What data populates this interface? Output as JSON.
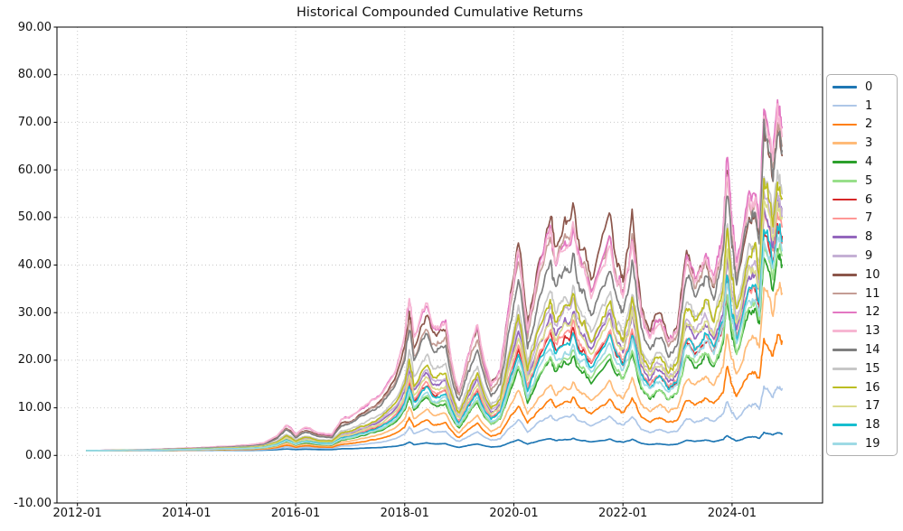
{
  "chart_data": {
    "type": "line",
    "title": "Historical Compounded Cumulative Returns",
    "xlabel": "",
    "ylabel": "",
    "grid": "dotted",
    "legend_position": "outside-right",
    "ylim": [
      -10,
      90
    ],
    "y_tick_labels": [
      "90.00",
      "80.00",
      "70.00",
      "60.00",
      "50.00",
      "40.00",
      "30.00",
      "20.00",
      "10.00",
      "0.00",
      "-10.00"
    ],
    "x_tick_labels": [
      "2012-01",
      "2014-01",
      "2016-01",
      "2018-01",
      "2020-01",
      "2022-01",
      "2024-01"
    ],
    "x_dates": [
      "2012-03",
      "2012-06",
      "2012-09",
      "2012-12",
      "2013-03",
      "2013-06",
      "2013-09",
      "2013-12",
      "2014-03",
      "2014-06",
      "2014-09",
      "2014-12",
      "2015-03",
      "2015-06",
      "2015-09",
      "2015-11",
      "2016-01",
      "2016-03",
      "2016-06",
      "2016-09",
      "2016-11",
      "2017-01",
      "2017-04",
      "2017-07",
      "2017-10",
      "2018-01",
      "2018-02",
      "2018-03",
      "2018-06",
      "2018-08",
      "2018-10",
      "2018-12",
      "2019-01",
      "2019-03",
      "2019-05",
      "2019-08",
      "2019-10",
      "2019-12",
      "2020-02",
      "2020-04",
      "2020-06",
      "2020-09",
      "2020-10",
      "2020-12",
      "2021-02",
      "2021-04",
      "2021-06",
      "2021-10",
      "2021-12",
      "2022-01",
      "2022-03",
      "2022-05",
      "2022-07",
      "2022-09",
      "2022-11",
      "2023-01",
      "2023-03",
      "2023-05",
      "2023-07",
      "2023-09",
      "2023-11",
      "2023-12",
      "2024-01",
      "2024-02",
      "2024-04",
      "2024-06",
      "2024-07",
      "2024-08",
      "2024-10",
      "2024-11",
      "2024-12"
    ],
    "base_series_label": "12",
    "base_values": [
      1.0,
      1.05,
      1.1,
      1.15,
      1.2,
      1.28,
      1.38,
      1.5,
      1.6,
      1.72,
      1.85,
      2.0,
      2.2,
      2.6,
      4.2,
      6.5,
      4.4,
      6.0,
      4.8,
      4.4,
      7.5,
      8.5,
      10.0,
      12.0,
      15.5,
      24.0,
      32.0,
      25.0,
      31.0,
      26.5,
      28.0,
      17.0,
      14.0,
      22.0,
      26.0,
      15.0,
      18.0,
      30.0,
      42.0,
      25.0,
      35.0,
      47.0,
      40.0,
      44.0,
      49.0,
      40.0,
      35.0,
      46.0,
      38.0,
      34.0,
      46.0,
      30.0,
      25.0,
      29.0,
      24.0,
      27.0,
      42.0,
      38.0,
      43.0,
      37.0,
      48.0,
      63.0,
      48.0,
      40.0,
      48.0,
      55.0,
      47.0,
      77.0,
      62.0,
      72.0,
      69.0
    ],
    "model_note": "series value at date t = 1 + ratio(t) * (base_value(t) - 1); ratio interpolated linearly over [index,ratio] control points",
    "series": [
      {
        "label": "0",
        "color": "#1f77b4",
        "end_value": 4.5,
        "ratio_points": [
          [
            0,
            0.08
          ],
          [
            25,
            0.055
          ],
          [
            70,
            0.0515
          ]
        ]
      },
      {
        "label": "1",
        "color": "#aec7e8",
        "end_value": 14.0,
        "ratio_points": [
          [
            0,
            0.15
          ],
          [
            25,
            0.148
          ],
          [
            60,
            0.165
          ],
          [
            70,
            0.191
          ]
        ]
      },
      {
        "label": "2",
        "color": "#ff7f0e",
        "end_value": 24.0,
        "ratio_points": [
          [
            0,
            0.22
          ],
          [
            25,
            0.21
          ],
          [
            44,
            0.23
          ],
          [
            60,
            0.27
          ],
          [
            70,
            0.338
          ]
        ]
      },
      {
        "label": "3",
        "color": "#ffbb78",
        "end_value": 34.0,
        "ratio_points": [
          [
            0,
            0.3
          ],
          [
            25,
            0.284
          ],
          [
            44,
            0.3
          ],
          [
            60,
            0.39
          ],
          [
            70,
            0.485
          ]
        ]
      },
      {
        "label": "4",
        "color": "#2ca02c",
        "end_value": 40.0,
        "ratio_points": [
          [
            0,
            0.36
          ],
          [
            25,
            0.355
          ],
          [
            44,
            0.42
          ],
          [
            60,
            0.49
          ],
          [
            70,
            0.574
          ]
        ]
      },
      {
        "label": "5",
        "color": "#98df8a",
        "end_value": 42.0,
        "ratio_points": [
          [
            0,
            0.38
          ],
          [
            25,
            0.37
          ],
          [
            44,
            0.44
          ],
          [
            60,
            0.51
          ],
          [
            70,
            0.603
          ]
        ]
      },
      {
        "label": "6",
        "color": "#d62728",
        "end_value": 46.0,
        "ratio_points": [
          [
            0,
            0.44
          ],
          [
            25,
            0.435
          ],
          [
            44,
            0.54
          ],
          [
            60,
            0.575
          ],
          [
            70,
            0.662
          ]
        ]
      },
      {
        "label": "7",
        "color": "#ff9896",
        "end_value": 48.0,
        "ratio_points": [
          [
            0,
            0.46
          ],
          [
            25,
            0.45
          ],
          [
            44,
            0.56
          ],
          [
            60,
            0.59
          ],
          [
            70,
            0.691
          ]
        ]
      },
      {
        "label": "8",
        "color": "#9467bd",
        "end_value": 50.0,
        "ratio_points": [
          [
            0,
            0.52
          ],
          [
            25,
            0.516
          ],
          [
            44,
            0.625
          ],
          [
            60,
            0.645
          ],
          [
            70,
            0.721
          ]
        ]
      },
      {
        "label": "9",
        "color": "#c5b0d5",
        "end_value": 52.0,
        "ratio_points": [
          [
            0,
            0.55
          ],
          [
            25,
            0.548
          ],
          [
            44,
            0.667
          ],
          [
            60,
            0.68
          ],
          [
            70,
            0.75
          ]
        ]
      },
      {
        "label": "10",
        "color": "#8c564b",
        "end_value": 63.0,
        "ratio_points": [
          [
            0,
            0.85
          ],
          [
            25,
            0.9
          ],
          [
            41,
            1.065
          ],
          [
            44,
            1.083
          ],
          [
            50,
            1.089
          ],
          [
            56,
            1.0
          ],
          [
            61,
            0.92
          ],
          [
            70,
            0.912
          ]
        ]
      },
      {
        "label": "11",
        "color": "#c49c94",
        "end_value": 65.0,
        "ratio_points": [
          [
            0,
            0.82
          ],
          [
            25,
            0.84
          ],
          [
            44,
            1.0
          ],
          [
            50,
            1.0
          ],
          [
            56,
            0.95
          ],
          [
            70,
            0.941
          ]
        ]
      },
      {
        "label": "12",
        "color": "#e377c2",
        "end_value": 69.0,
        "ratio_points": [
          [
            0,
            1.0
          ],
          [
            70,
            1.0
          ]
        ]
      },
      {
        "label": "13",
        "color": "#f7b6d2",
        "end_value": 67.0,
        "ratio_points": [
          [
            0,
            1.0
          ],
          [
            26,
            1.01
          ],
          [
            44,
            0.98
          ],
          [
            70,
            0.971
          ]
        ]
      },
      {
        "label": "14",
        "color": "#7f7f7f",
        "end_value": 64.0,
        "ratio_points": [
          [
            0,
            0.8
          ],
          [
            25,
            0.81
          ],
          [
            44,
            0.854
          ],
          [
            70,
            0.926
          ]
        ]
      },
      {
        "label": "15",
        "color": "#c7c7c7",
        "end_value": 55.0,
        "ratio_points": [
          [
            0,
            0.65
          ],
          [
            25,
            0.645
          ],
          [
            44,
            0.73
          ],
          [
            70,
            0.794
          ]
        ]
      },
      {
        "label": "16",
        "color": "#bcbd22",
        "end_value": 54.0,
        "ratio_points": [
          [
            0,
            0.58
          ],
          [
            25,
            0.58
          ],
          [
            44,
            0.688
          ],
          [
            70,
            0.779
          ]
        ]
      },
      {
        "label": "17",
        "color": "#dbdb8d",
        "end_value": 50.0,
        "ratio_points": [
          [
            0,
            0.49
          ],
          [
            25,
            0.484
          ],
          [
            44,
            0.604
          ],
          [
            70,
            0.721
          ]
        ]
      },
      {
        "label": "18",
        "color": "#17becf",
        "end_value": 45.0,
        "ratio_points": [
          [
            0,
            0.42
          ],
          [
            25,
            0.42
          ],
          [
            44,
            0.52
          ],
          [
            70,
            0.647
          ]
        ]
      },
      {
        "label": "19",
        "color": "#9edae5",
        "end_value": 43.0,
        "ratio_points": [
          [
            0,
            0.39
          ],
          [
            25,
            0.387
          ],
          [
            44,
            0.479
          ],
          [
            70,
            0.618
          ]
        ]
      }
    ]
  },
  "colors": {
    "background": "#ffffff",
    "grid": "#c9c9c9",
    "axis": "#000000",
    "text": "#111111",
    "legend_border": "#b0b0b0"
  }
}
